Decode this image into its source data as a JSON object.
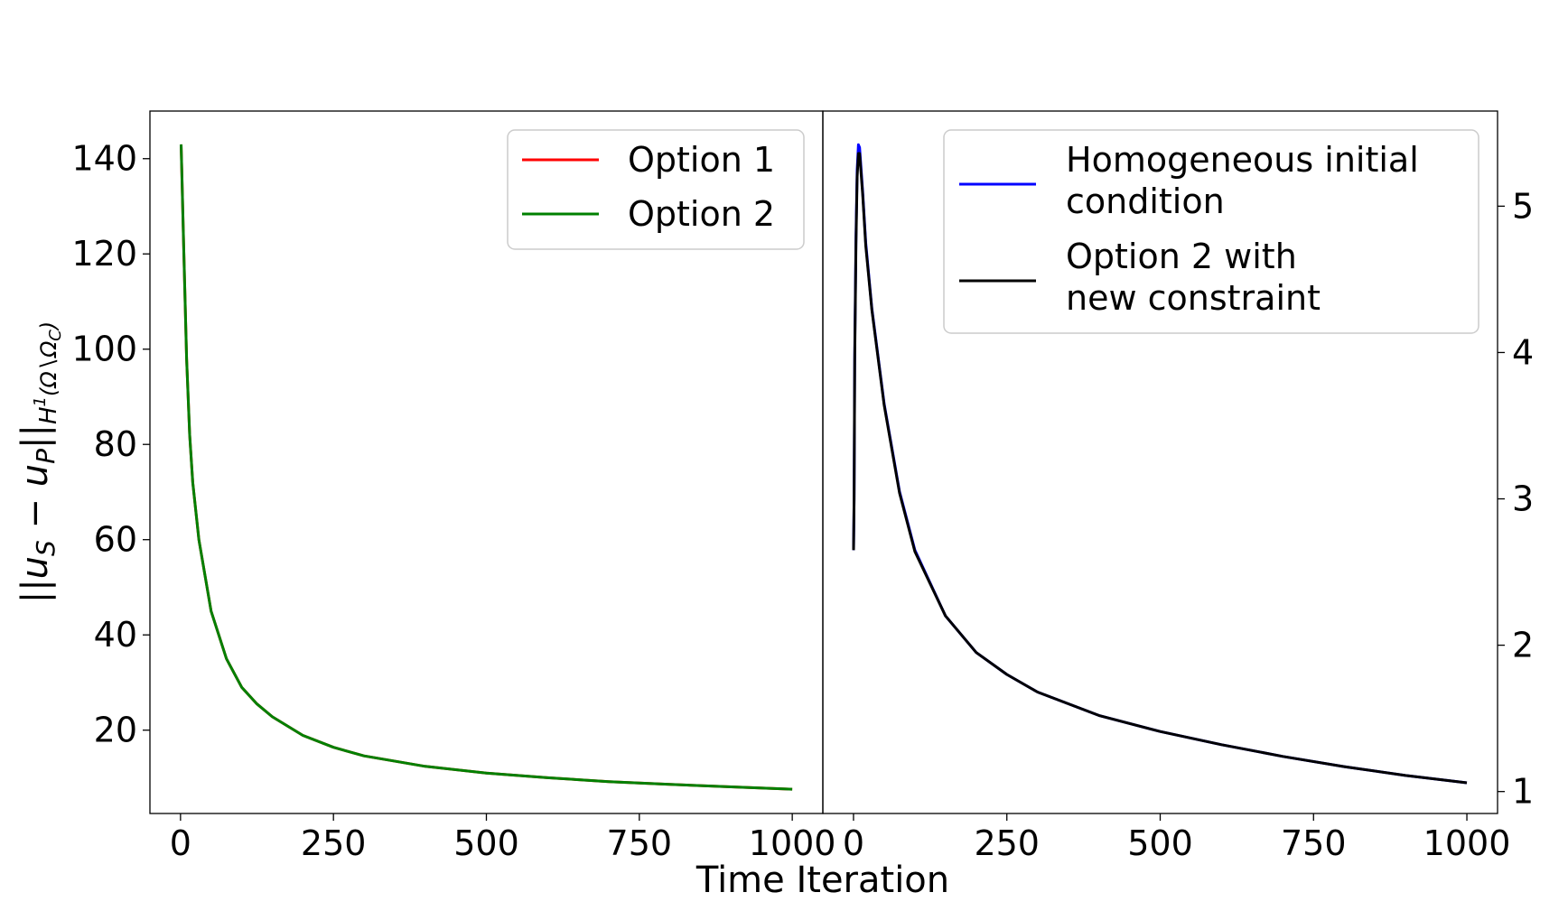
{
  "chart_data": [
    {
      "type": "line",
      "ylabel": "||u_S − u_P||_{H^1(Ω∖Ω_C)}",
      "xlim": [
        -50,
        1050
      ],
      "ylim": [
        2.5,
        150
      ],
      "xticks": [
        "0",
        "250",
        "500",
        "750",
        "1000"
      ],
      "yticks": [
        "20",
        "40",
        "60",
        "80",
        "100",
        "120",
        "140"
      ],
      "legend_position": "top-right",
      "x": [
        1,
        2,
        5,
        10,
        15,
        20,
        30,
        50,
        75,
        100,
        125,
        150,
        200,
        250,
        300,
        400,
        500,
        600,
        700,
        800,
        900,
        1000
      ],
      "series": [
        {
          "name": "Option 1",
          "color": "#ff0000",
          "values": [
            143,
            138,
            122,
            98,
            82,
            72,
            60,
            45,
            35,
            29,
            25.5,
            22.8,
            18.9,
            16.4,
            14.6,
            12.4,
            11.0,
            10.0,
            9.2,
            8.6,
            8.1,
            7.6
          ]
        },
        {
          "name": "Option 2",
          "color": "#008000",
          "values": [
            143,
            138,
            122,
            98,
            82,
            72,
            60,
            45,
            35,
            29,
            25.5,
            22.8,
            18.9,
            16.4,
            14.6,
            12.4,
            11.0,
            10.0,
            9.2,
            8.6,
            8.1,
            7.6
          ]
        }
      ]
    },
    {
      "type": "line",
      "xlim": [
        -50,
        1050
      ],
      "ylim": [
        0.85,
        5.65
      ],
      "xticks": [
        "0",
        "250",
        "500",
        "750",
        "1000"
      ],
      "yticks": [
        "1",
        "2",
        "3",
        "4",
        "5"
      ],
      "legend_position": "top-right",
      "x": [
        0,
        1,
        2,
        4,
        6,
        8,
        10,
        15,
        20,
        30,
        50,
        75,
        100,
        150,
        200,
        250,
        300,
        400,
        500,
        600,
        700,
        800,
        900,
        1000
      ],
      "series": [
        {
          "name": "Homogeneous initial condition",
          "color": "#0000ff",
          "values": [
            2.65,
            3.0,
            4.0,
            4.8,
            5.25,
            5.42,
            5.4,
            5.1,
            4.75,
            4.3,
            3.65,
            3.05,
            2.65,
            2.2,
            1.95,
            1.8,
            1.68,
            1.52,
            1.41,
            1.32,
            1.24,
            1.17,
            1.11,
            1.06
          ]
        },
        {
          "name": "Option 2 with new constraint",
          "color": "#000000",
          "values": [
            2.65,
            3.0,
            3.95,
            4.75,
            5.2,
            5.36,
            5.36,
            5.08,
            4.73,
            4.29,
            3.64,
            3.04,
            2.64,
            2.2,
            1.95,
            1.8,
            1.68,
            1.52,
            1.41,
            1.32,
            1.24,
            1.17,
            1.11,
            1.06
          ]
        }
      ]
    }
  ],
  "shared_xlabel": "Time Iteration"
}
